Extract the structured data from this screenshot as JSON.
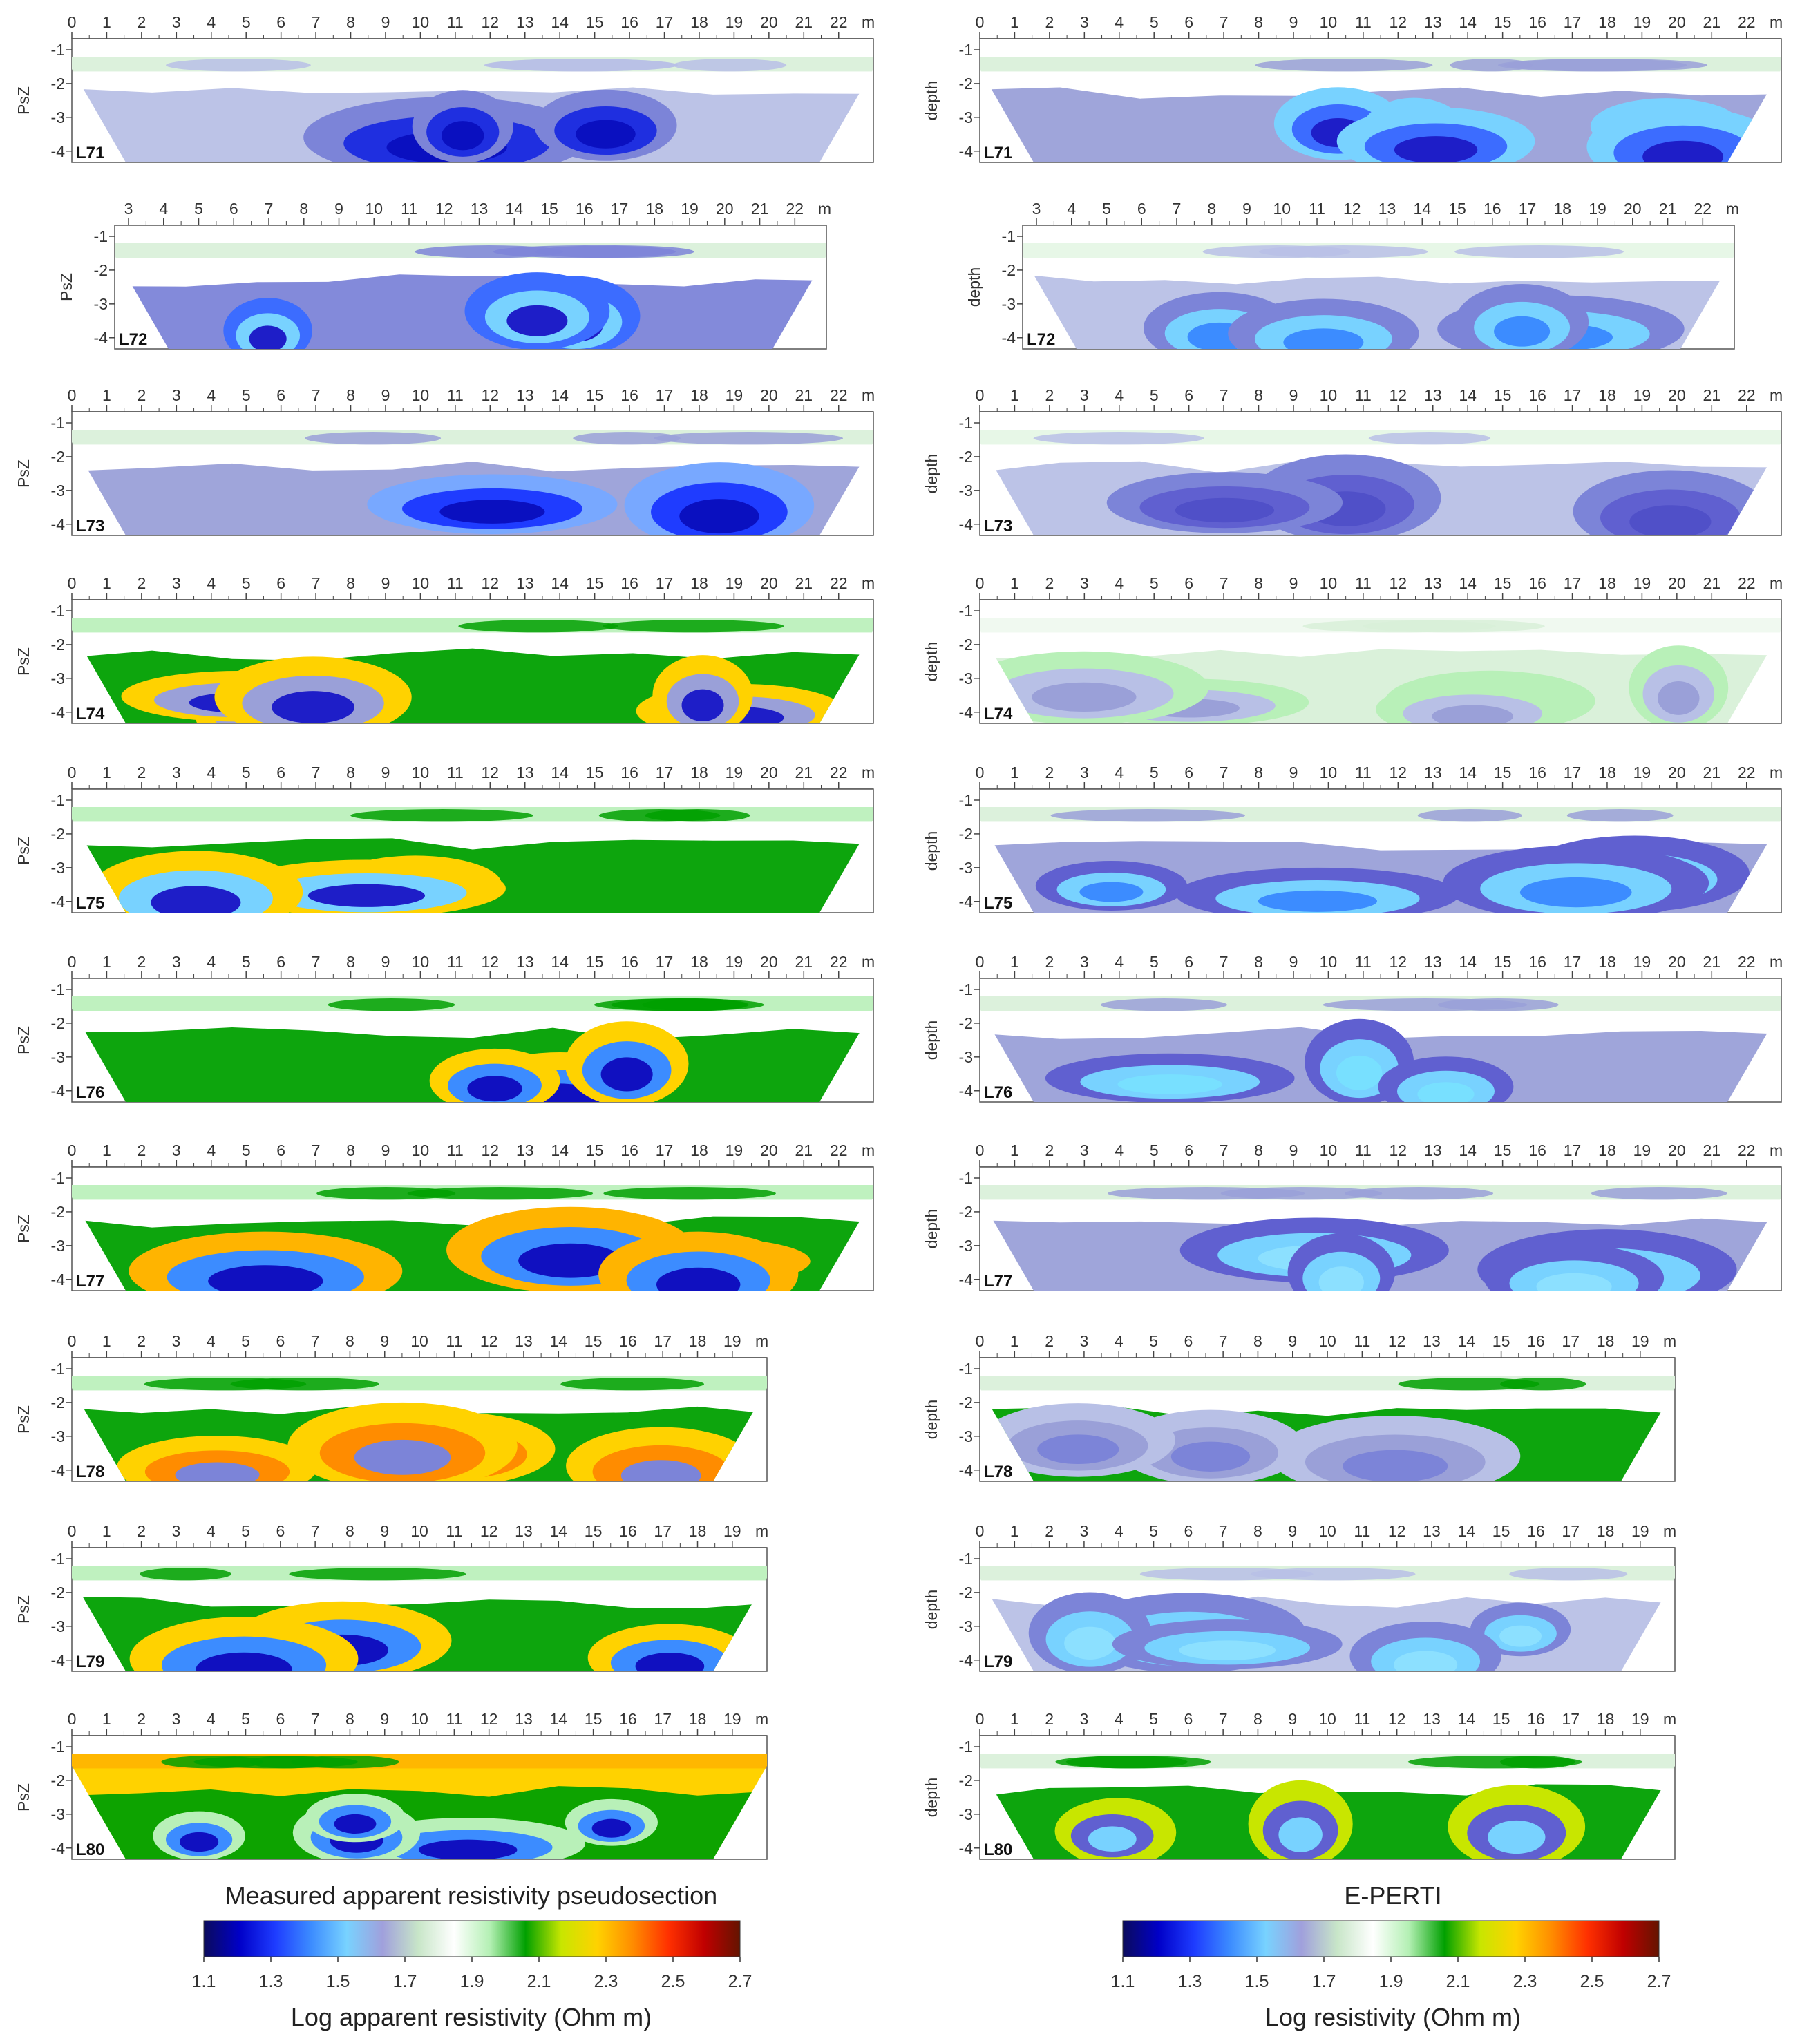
{
  "figure": {
    "left_column_title": "Measured apparent resistivity pseudosection",
    "right_column_title": "E-PERTI",
    "left_colorbar_label": "Log apparent resistivity (Ohm m)",
    "right_colorbar_label": "Log resistivity (Ohm m)",
    "left_ylabel": "PsZ",
    "right_ylabel": "depth",
    "x_unit": "m",
    "colorbar_ticks": [
      "1.1",
      "1.3",
      "1.5",
      "1.7",
      "1.9",
      "2.1",
      "2.3",
      "2.5",
      "2.7"
    ],
    "colorbar_range": [
      1.1,
      2.7
    ],
    "colorbar_colors": [
      "#0b0b5c",
      "#0000c8",
      "#1e3cff",
      "#3c8cff",
      "#78d2ff",
      "#a0a0dc",
      "#c8e6c8",
      "#ffffff",
      "#b4f0b4",
      "#00a000",
      "#c8e600",
      "#ffd200",
      "#ff8c00",
      "#ff3000",
      "#c00000",
      "#641400"
    ],
    "y_ticks": [
      "-1",
      "-2",
      "-3",
      "-4"
    ]
  },
  "sections": [
    {
      "label": "L71",
      "x_max": 22,
      "x_start": 0,
      "left_palette": [
        "#ffffff",
        "#d8f0d8",
        "#b8c0e6",
        "#7c84d8",
        "#1f2fe0",
        "#0a10c0"
      ],
      "right_palette": [
        "#ffffff",
        "#d8f0d8",
        "#9aa0d8",
        "#78d2ff",
        "#3c6cff",
        "#1e1ec8"
      ]
    },
    {
      "label": "L72",
      "x_max": 22,
      "x_start": 3,
      "left_palette": [
        "#ffffff",
        "#d8f0d8",
        "#7c84d8",
        "#3c6cff",
        "#78d2ff",
        "#1e1ec8"
      ],
      "right_palette": [
        "#ffffff",
        "#e4f6e4",
        "#b8c0e6",
        "#7c84d8",
        "#78d2ff",
        "#3c8cff"
      ]
    },
    {
      "label": "L73",
      "x_max": 22,
      "x_start": 0,
      "left_palette": [
        "#ffffff",
        "#d8f0d8",
        "#9aa0d8",
        "#78a8ff",
        "#1f3cff",
        "#0a10c0"
      ],
      "right_palette": [
        "#ffffff",
        "#e4f6e4",
        "#b8c0e6",
        "#7c84d8",
        "#6060d0",
        "#5050c8"
      ]
    },
    {
      "label": "L74",
      "x_max": 22,
      "x_start": 0,
      "left_palette": [
        "#ffffff",
        "#b8f0b8",
        "#00a000",
        "#ffd200",
        "#9aa0d8",
        "#1e1ec8"
      ],
      "right_palette": [
        "#ffffff",
        "#eef8ee",
        "#d8f0d8",
        "#b8f0b8",
        "#b8c0e6",
        "#9aa0d8"
      ]
    },
    {
      "label": "L75",
      "x_max": 22,
      "x_start": 0,
      "left_palette": [
        "#ffffff",
        "#b8f0b8",
        "#00a000",
        "#ffd200",
        "#78d2ff",
        "#1e1ec8"
      ],
      "right_palette": [
        "#ffffff",
        "#d8f0d8",
        "#9aa0d8",
        "#6060d0",
        "#78d2ff",
        "#3c8cff"
      ]
    },
    {
      "label": "L76",
      "x_max": 22,
      "x_start": 0,
      "left_palette": [
        "#ffffff",
        "#b8f0b8",
        "#00a000",
        "#ffd200",
        "#3c8cff",
        "#1010c0"
      ],
      "right_palette": [
        "#ffffff",
        "#d8f0d8",
        "#9aa0d8",
        "#6060d0",
        "#78d2ff",
        "#78e0ff"
      ]
    },
    {
      "label": "L77",
      "x_max": 22,
      "x_start": 0,
      "left_palette": [
        "#ffffff",
        "#b8f0b8",
        "#00a000",
        "#ffb400",
        "#3c8cff",
        "#1010c0"
      ],
      "right_palette": [
        "#ffffff",
        "#d8f0d8",
        "#9aa0d8",
        "#6060d0",
        "#78d2ff",
        "#8ce0ff"
      ]
    },
    {
      "label": "L78",
      "x_max": 19,
      "x_start": 0,
      "left_palette": [
        "#ffffff",
        "#b8f0b8",
        "#00a000",
        "#ffd200",
        "#ff8c00",
        "#7c84d8"
      ],
      "right_palette": [
        "#ffffff",
        "#d8f0d8",
        "#00a000",
        "#b8c0e6",
        "#9aa0d8",
        "#7c84d8"
      ]
    },
    {
      "label": "L79",
      "x_max": 19,
      "x_start": 0,
      "left_palette": [
        "#ffffff",
        "#b8f0b8",
        "#00a000",
        "#ffd200",
        "#3c8cff",
        "#1010c0"
      ],
      "right_palette": [
        "#ffffff",
        "#d8f0d8",
        "#b8c0e6",
        "#7c84d8",
        "#78d2ff",
        "#8ce0ff"
      ]
    },
    {
      "label": "L80",
      "x_max": 19,
      "x_start": 0,
      "left_palette": [
        "#ffd200",
        "#ffb400",
        "#00a000",
        "#b8f0b8",
        "#3c8cff",
        "#1010c0"
      ],
      "right_palette": [
        "#ffffff",
        "#d8f0d8",
        "#00a000",
        "#c8e600",
        "#6060d0",
        "#78d2ff"
      ]
    }
  ]
}
